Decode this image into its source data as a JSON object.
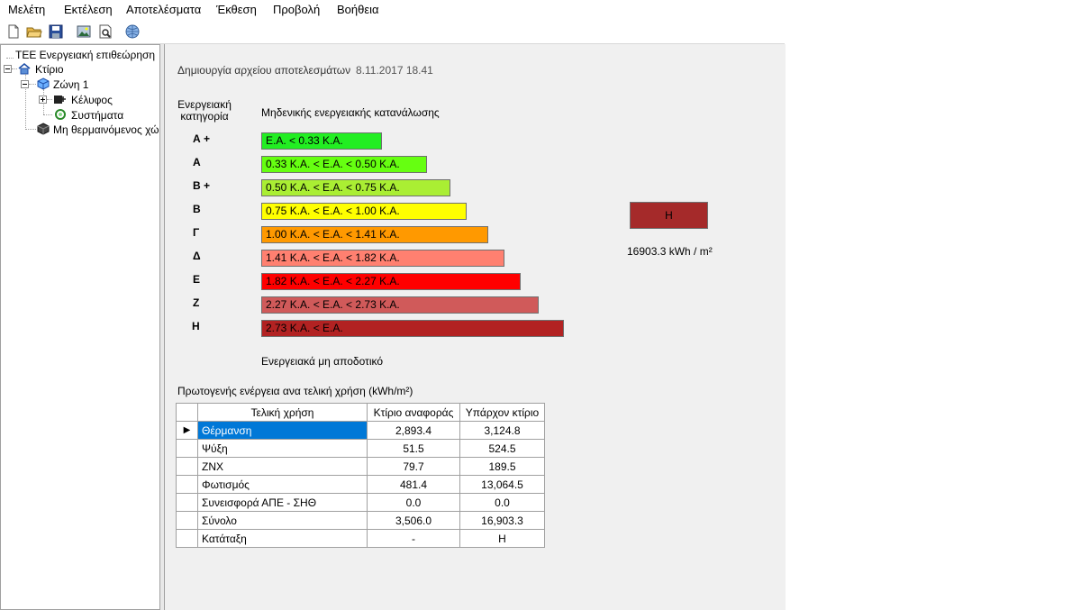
{
  "menu": [
    "Μελέτη",
    "Εκτέλεση",
    "Αποτελέσματα",
    "Έκθεση",
    "Προβολή",
    "Βοήθεια"
  ],
  "toolbar": {
    "icons": [
      "new-file-icon",
      "open-folder-icon",
      "save-icon",
      "image-icon",
      "print-preview-icon",
      "globe-icon"
    ]
  },
  "tree": {
    "root": "ΤΕΕ Ενεργειακή επιθεώρηση",
    "building": "Κτίριο",
    "zone": "Ζώνη 1",
    "envelope": "Κέλυφος",
    "systems": "Συστήματα",
    "unheated": "Μη θερμαινόμενος χώ"
  },
  "results": {
    "created_label": "Δημιουργία αρχείου αποτελεσμάτων",
    "created_date": "8.11.2017 18.41",
    "category_header": "Ενεργειακή\nκατηγορία",
    "top_label": "Μηδενικής ενεργειακής κατανάλωσης",
    "bottom_label": "Ενεργειακά μη αποδοτικό",
    "categories": [
      {
        "name": "Α +",
        "range": "Ε.Α. < 0.33 Κ.Α.",
        "color": "#22ee22"
      },
      {
        "name": "Α",
        "range": "0.33 Κ.Α. <  Ε.Α. < 0.50 Κ.Α.",
        "color": "#66ff11"
      },
      {
        "name": "Β +",
        "range": "0.50 Κ.Α. <  Ε.Α. < 0.75 Κ.Α.",
        "color": "#aaee33"
      },
      {
        "name": "Β",
        "range": "0.75 Κ.Α. <  Ε.Α. < 1.00 Κ.Α.",
        "color": "#ffff00"
      },
      {
        "name": "Γ",
        "range": "1.00 Κ.Α. <  Ε.Α. < 1.41 Κ.Α.",
        "color": "#ff9900"
      },
      {
        "name": "Δ",
        "range": "1.41 Κ.Α. <  Ε.Α. < 1.82 Κ.Α.",
        "color": "#ff8070"
      },
      {
        "name": "Ε",
        "range": "1.82 Κ.Α. <  Ε.Α. < 2.27 Κ.Α.",
        "color": "#ff0000"
      },
      {
        "name": "Ζ",
        "range": "2.27 Κ.Α. <  Ε.Α. < 2.73 Κ.Α.",
        "color": "#d05a5a"
      },
      {
        "name": "Η",
        "range": "2.73 Κ.Α. <  Ε.Α.",
        "color": "#b22222"
      }
    ],
    "rating_badge": "Η",
    "rating_color": "#a52a2a",
    "rating_value": "16903.3 kWh / m²",
    "table_title": "Πρωτογενής ενέργεια ανα τελική χρήση (kWh/m²)",
    "columns": [
      "Τελική χρήση",
      "Κτίριο αναφοράς",
      "Υπάρχον κτίριο"
    ],
    "rows": [
      [
        "Θέρμανση",
        "2,893.4",
        "3,124.8"
      ],
      [
        "Ψύξη",
        "51.5",
        "524.5"
      ],
      [
        "ΖΝΧ",
        "79.7",
        "189.5"
      ],
      [
        "Φωτισμός",
        "481.4",
        "13,064.5"
      ],
      [
        "Συνεισφορά ΑΠΕ - ΣΗΘ",
        "0.0",
        "0.0"
      ],
      [
        "Σύνολο",
        "3,506.0",
        "16,903.3"
      ],
      [
        "Κατάταξη",
        "-",
        "Η"
      ]
    ]
  }
}
